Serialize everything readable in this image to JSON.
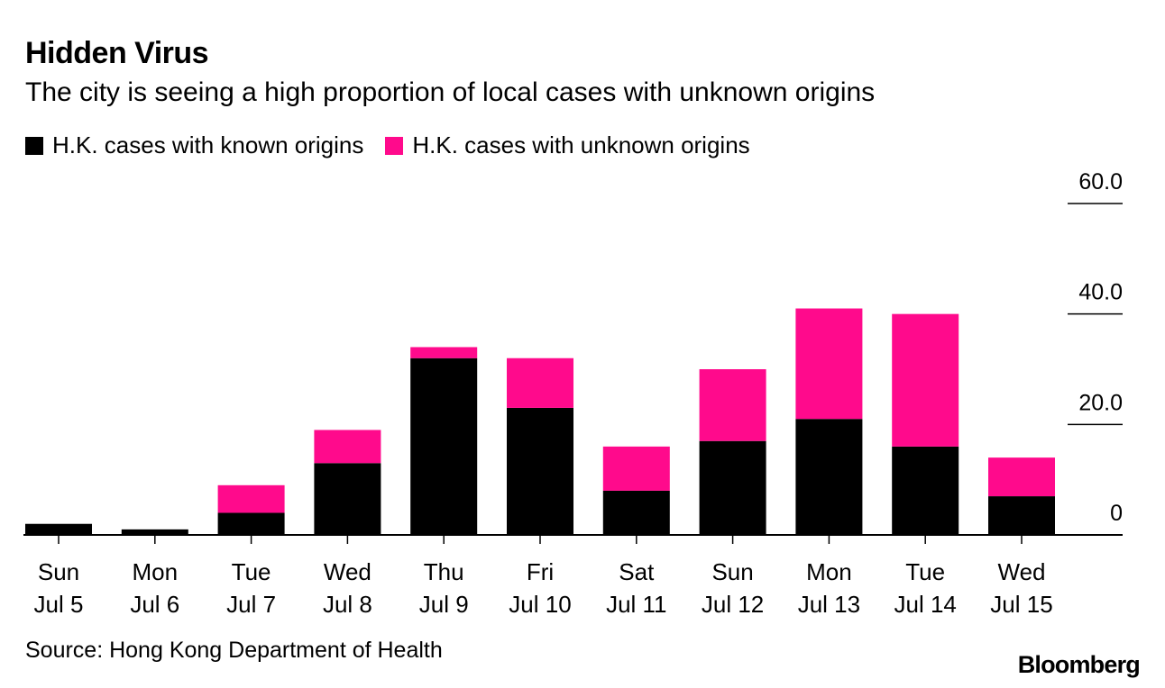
{
  "header": {
    "title": "Hidden Virus",
    "subtitle": "The city is seeing a high proportion of local cases with unknown origins"
  },
  "legend": [
    {
      "label": "H.K. cases with known origins",
      "color": "#000000"
    },
    {
      "label": "H.K. cases with unknown origins",
      "color": "#ff0a8c"
    }
  ],
  "footer": {
    "source": "Source: Hong Kong Department of Health",
    "brand": "Bloomberg"
  },
  "chart_data": {
    "type": "bar",
    "stacked": true,
    "title": "Hidden Virus",
    "subtitle": "The city is seeing a high proportion of local cases with unknown origins",
    "categories": [
      [
        "Sun",
        "Jul 5"
      ],
      [
        "Mon",
        "Jul 6"
      ],
      [
        "Tue",
        "Jul 7"
      ],
      [
        "Wed",
        "Jul 8"
      ],
      [
        "Thu",
        "Jul 9"
      ],
      [
        "Fri",
        "Jul 10"
      ],
      [
        "Sat",
        "Jul 11"
      ],
      [
        "Sun",
        "Jul 12"
      ],
      [
        "Mon",
        "Jul 13"
      ],
      [
        "Tue",
        "Jul 14"
      ],
      [
        "Wed",
        "Jul 15"
      ]
    ],
    "series": [
      {
        "name": "H.K. cases with known origins",
        "color": "#000000",
        "values": [
          2,
          1,
          4,
          13,
          32,
          23,
          8,
          17,
          21,
          16,
          7
        ]
      },
      {
        "name": "H.K. cases with unknown origins",
        "color": "#ff0a8c",
        "values": [
          0,
          0,
          5,
          6,
          2,
          9,
          8,
          13,
          20,
          24,
          7
        ]
      }
    ],
    "y_axis": {
      "position": "right",
      "ylim": [
        0,
        60
      ],
      "ticks": [
        0,
        20,
        40,
        60
      ],
      "tick_labels": [
        "0",
        "20.0",
        "40.0",
        "60.0"
      ]
    },
    "xlabel": "",
    "ylabel": "",
    "legend_position": "top-left"
  }
}
